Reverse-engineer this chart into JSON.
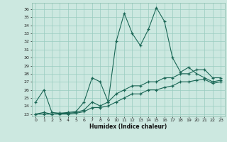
{
  "xlabel": "Humidex (Indice chaleur)",
  "xlim": [
    -0.5,
    23.5
  ],
  "ylim": [
    22.7,
    36.8
  ],
  "yticks": [
    23,
    24,
    25,
    26,
    27,
    28,
    29,
    30,
    31,
    32,
    33,
    34,
    35,
    36
  ],
  "xticks": [
    0,
    1,
    2,
    3,
    4,
    5,
    6,
    7,
    8,
    9,
    10,
    11,
    12,
    13,
    14,
    15,
    16,
    17,
    18,
    19,
    20,
    21,
    22,
    23
  ],
  "bg_color": "#cce8e0",
  "grid_color": "#99ccbf",
  "line_color": "#1a6655",
  "series1_x": [
    0,
    1,
    2,
    3,
    4,
    5,
    6,
    7,
    8,
    9,
    10,
    11,
    12,
    13,
    14,
    15,
    16,
    17,
    18,
    19,
    20,
    21,
    22,
    23
  ],
  "series1_y": [
    24.5,
    26.0,
    23.2,
    23.1,
    23.2,
    23.3,
    24.5,
    27.5,
    27.0,
    24.5,
    32.0,
    35.5,
    33.0,
    31.5,
    33.5,
    36.2,
    34.5,
    30.0,
    28.2,
    28.8,
    28.0,
    27.5,
    27.0,
    27.2
  ],
  "series2_x": [
    0,
    1,
    2,
    3,
    4,
    5,
    6,
    7,
    8,
    9,
    10,
    11,
    12,
    13,
    14,
    15,
    16,
    17,
    18,
    19,
    20,
    21,
    22,
    23
  ],
  "series2_y": [
    23.0,
    23.2,
    23.0,
    23.1,
    23.1,
    23.2,
    23.5,
    24.5,
    24.0,
    24.5,
    25.5,
    26.0,
    26.5,
    26.5,
    27.0,
    27.0,
    27.5,
    27.5,
    28.0,
    28.0,
    28.5,
    28.5,
    27.5,
    27.5
  ],
  "series3_x": [
    0,
    1,
    2,
    3,
    4,
    5,
    6,
    7,
    8,
    9,
    10,
    11,
    12,
    13,
    14,
    15,
    16,
    17,
    18,
    19,
    20,
    21,
    22,
    23
  ],
  "series3_y": [
    23.0,
    23.0,
    23.0,
    23.0,
    23.0,
    23.1,
    23.3,
    23.8,
    23.8,
    24.0,
    24.5,
    25.0,
    25.5,
    25.5,
    26.0,
    26.0,
    26.3,
    26.5,
    27.0,
    27.0,
    27.2,
    27.3,
    26.8,
    27.0
  ]
}
